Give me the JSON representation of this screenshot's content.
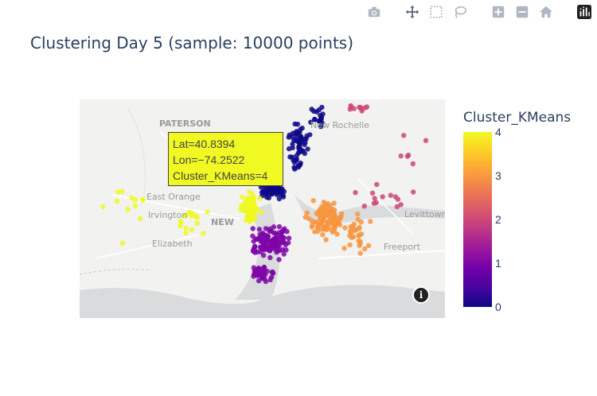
{
  "modebar": {
    "buttons": [
      {
        "name": "camera-icon",
        "label": "Download plot as a png"
      },
      {
        "name": "pan-icon",
        "label": "Pan"
      },
      {
        "name": "box-select-icon",
        "label": "Box Select"
      },
      {
        "name": "lasso-select-icon",
        "label": "Lasso Select"
      },
      {
        "name": "zoom-in-icon",
        "label": "Zoom in"
      },
      {
        "name": "zoom-out-icon",
        "label": "Zoom out"
      },
      {
        "name": "reset-view-icon",
        "label": "Reset view"
      },
      {
        "name": "plotly-logo-icon",
        "label": "Produced with Plotly"
      }
    ]
  },
  "title": "Clustering Day 5 (sample: 10000 points)",
  "map_labels": {
    "paterson": "PATERSON",
    "new_rochelle": "New Rochelle",
    "east_orange": "East Orange",
    "irvington": "Irvington",
    "newark": "NEW",
    "elizabeth": "Elizabeth",
    "levittown": "Levittown",
    "freeport": "Freeport"
  },
  "hover": {
    "lat": "Lat=40.8394",
    "lon": "Lon=−74.2522",
    "cluster": "Cluster_KMeans=4"
  },
  "colorbar": {
    "title": "Cluster_KMeans",
    "ticks": [
      "4",
      "3",
      "2",
      "1",
      "0"
    ],
    "colors": [
      "#0d0887",
      "#7e03a8",
      "#cc4778",
      "#f89540",
      "#f0f921"
    ]
  }
}
